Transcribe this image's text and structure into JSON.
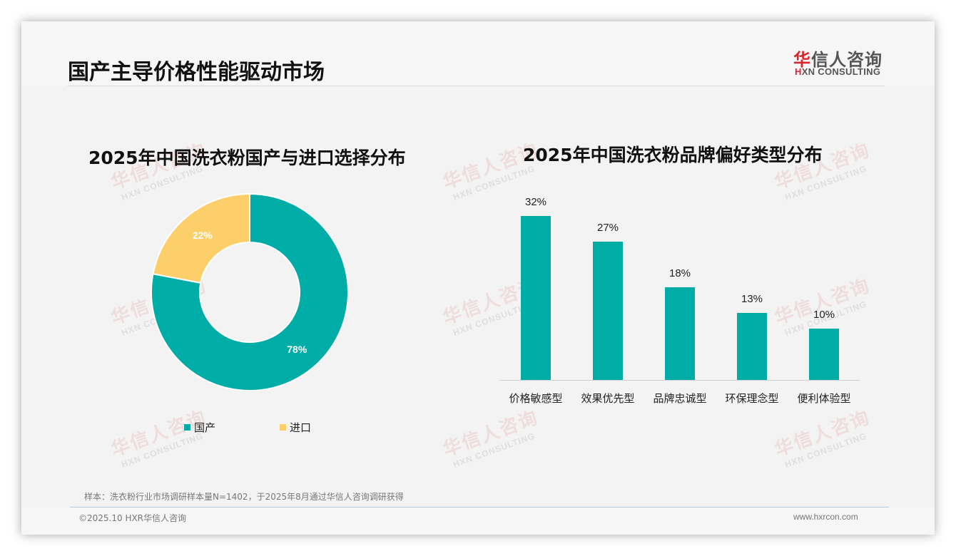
{
  "header": {
    "title": "国产主导价格性能驱动市场",
    "logo": {
      "cn_red": "华",
      "cn_rest": "信人咨询",
      "en_red": "H",
      "en_rest": "XN CONSULTING"
    }
  },
  "watermark": {
    "cn": "华信人咨询",
    "en": "HXN CONSULTING"
  },
  "colors": {
    "teal": "#00ADA6",
    "yellow": "#FDCF6A",
    "brand_red": "#D8262E"
  },
  "left_chart": {
    "title": "2025年中国洗衣粉国产与进口选择分布",
    "slices": [
      {
        "name": "国产",
        "value": 78,
        "label": "78%",
        "color": "#00ADA6"
      },
      {
        "name": "进口",
        "value": 22,
        "label": "22%",
        "color": "#FDCF6A"
      }
    ],
    "legend": [
      {
        "label": "国产",
        "color": "#00ADA6"
      },
      {
        "label": "进口",
        "color": "#FDCF6A"
      }
    ]
  },
  "right_chart": {
    "title": "2025年中国洗衣粉品牌偏好类型分布",
    "bars": [
      {
        "category": "价格敏感型",
        "value": 32,
        "label": "32%"
      },
      {
        "category": "效果优先型",
        "value": 27,
        "label": "27%"
      },
      {
        "category": "品牌忠诚型",
        "value": 18,
        "label": "18%"
      },
      {
        "category": "环保理念型",
        "value": 13,
        "label": "13%"
      },
      {
        "category": "便利体验型",
        "value": 10,
        "label": "10%"
      }
    ]
  },
  "chart_data": [
    {
      "type": "pie",
      "title": "2025年中国洗衣粉国产与进口选择分布",
      "categories": [
        "国产",
        "进口"
      ],
      "values": [
        78,
        22
      ],
      "unit": "%",
      "donut": true,
      "legend_position": "bottom"
    },
    {
      "type": "bar",
      "title": "2025年中国洗衣粉品牌偏好类型分布",
      "categories": [
        "价格敏感型",
        "效果优先型",
        "品牌忠诚型",
        "环保理念型",
        "便利体验型"
      ],
      "values": [
        32,
        27,
        18,
        13,
        10
      ],
      "unit": "%",
      "xlabel": "",
      "ylabel": "",
      "grid": false,
      "data_labels": true
    }
  ],
  "footer": {
    "note": "样本：洗衣粉行业市场调研样本量N=1402，于2025年8月通过华信人咨询调研获得",
    "copyright": "©2025.10 HXR华信人咨询",
    "website": "www.hxrcon.com"
  }
}
